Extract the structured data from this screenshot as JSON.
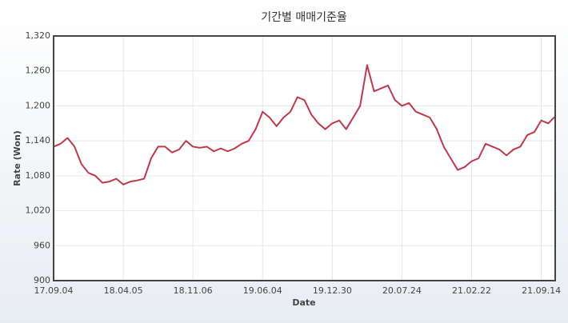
{
  "chart_data": {
    "type": "line",
    "title": "기간별 매매기준율",
    "x_label": "Date",
    "y_label": "Rate (Won)",
    "categories": [
      "17.09.04",
      null,
      null,
      null,
      null,
      null,
      null,
      null,
      null,
      null,
      "18.04.05",
      null,
      null,
      null,
      null,
      null,
      null,
      null,
      null,
      null,
      "18.11.06",
      null,
      null,
      null,
      null,
      null,
      null,
      null,
      null,
      null,
      "19.06.04",
      null,
      null,
      null,
      null,
      null,
      null,
      null,
      null,
      null,
      "19.12.30",
      null,
      null,
      null,
      null,
      null,
      null,
      null,
      null,
      null,
      "20.07.24",
      null,
      null,
      null,
      null,
      null,
      null,
      null,
      null,
      null,
      "21.02.22",
      null,
      null,
      null,
      null,
      null,
      null,
      null,
      null,
      null,
      "21.09.14",
      null,
      null
    ],
    "series": [
      {
        "name": "Rate",
        "color": "#c0394b",
        "values": [
          1130,
          1135,
          1145,
          1130,
          1100,
          1085,
          1080,
          1068,
          1070,
          1075,
          1065,
          1070,
          1072,
          1075,
          1110,
          1130,
          1130,
          1120,
          1125,
          1140,
          1130,
          1128,
          1130,
          1122,
          1127,
          1122,
          1127,
          1135,
          1140,
          1160,
          1190,
          1180,
          1165,
          1180,
          1190,
          1215,
          1210,
          1185,
          1170,
          1160,
          1170,
          1175,
          1160,
          1180,
          1200,
          1270,
          1225,
          1230,
          1235,
          1210,
          1200,
          1205,
          1190,
          1185,
          1180,
          1160,
          1130,
          1110,
          1090,
          1095,
          1105,
          1110,
          1135,
          1130,
          1125,
          1115,
          1125,
          1130,
          1150,
          1155,
          1175,
          1170,
          1182
        ]
      }
    ],
    "ylim": [
      900,
      1320
    ],
    "yticks": [
      {
        "value": 900,
        "label": "900"
      },
      {
        "value": 960,
        "label": "960"
      },
      {
        "value": 1020,
        "label": "1,020"
      },
      {
        "value": 1080,
        "label": "1,080"
      },
      {
        "value": 1140,
        "label": "1,140"
      },
      {
        "value": 1200,
        "label": "1,200"
      },
      {
        "value": 1260,
        "label": "1,260"
      },
      {
        "value": 1320,
        "label": "1,320"
      }
    ],
    "grid": true
  }
}
